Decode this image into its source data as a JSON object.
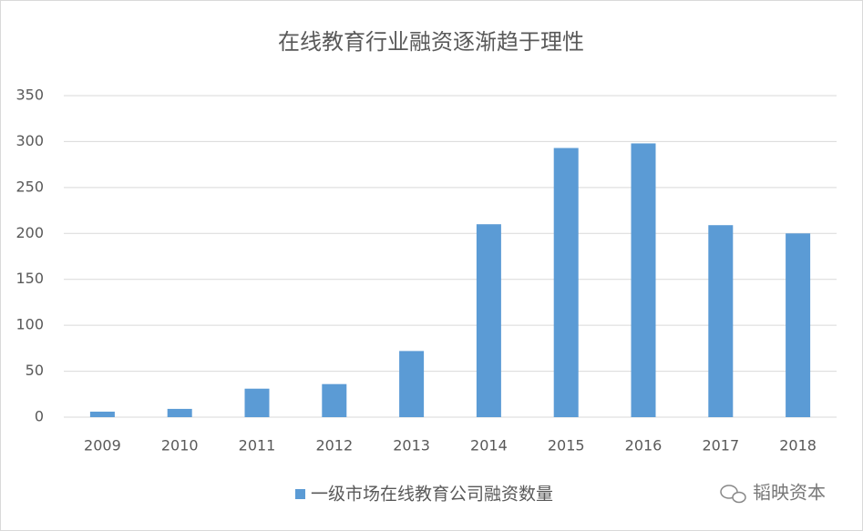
{
  "chart_data": {
    "type": "bar",
    "title": "在线教育行业融资逐渐趋于理性",
    "categories": [
      "2009",
      "2010",
      "2011",
      "2012",
      "2013",
      "2014",
      "2015",
      "2016",
      "2017",
      "2018"
    ],
    "series": [
      {
        "name": "一级市场在线教育公司融资数量",
        "color": "#5b9bd5",
        "values": [
          6,
          9,
          31,
          36,
          72,
          210,
          293,
          298,
          209,
          200
        ]
      }
    ],
    "ylim": [
      0,
      350
    ],
    "yticks": [
      0,
      50,
      100,
      150,
      200,
      250,
      300,
      350
    ],
    "grid": true,
    "legend": "bottom",
    "watermark": "韬映资本"
  }
}
